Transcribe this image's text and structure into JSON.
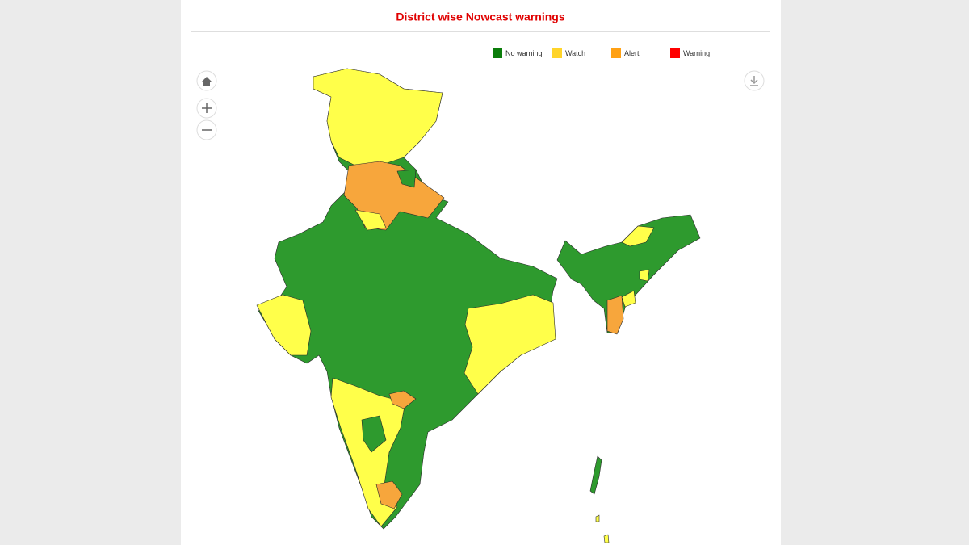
{
  "header": {
    "title": "District wise Nowcast warnings"
  },
  "legend": {
    "items": [
      {
        "label": "No warning",
        "color": "#0b7d0b"
      },
      {
        "label": "Watch",
        "color": "#ffd42a"
      },
      {
        "label": "Alert",
        "color": "#ffa114"
      },
      {
        "label": "Warning",
        "color": "#ff0000"
      }
    ]
  }
}
